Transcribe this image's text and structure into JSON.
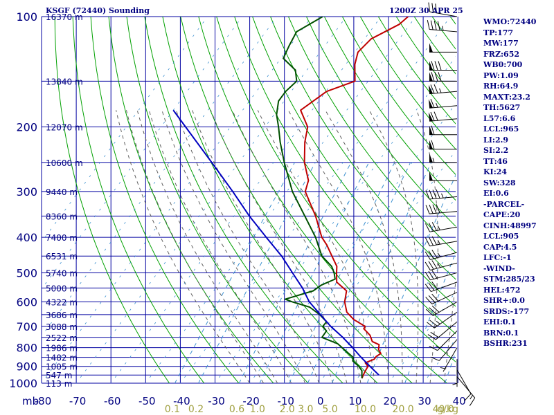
{
  "header": {
    "station": "KSGF (72440) Sounding",
    "time": "1200Z 30 APR 25"
  },
  "indices": [
    "WMO:72440",
    "TP:177",
    "MW:177",
    "FRZ:652",
    "WB0:700",
    "PW:1.09",
    "RH:64.9",
    "MAXT:23.2",
    "TH:5627",
    "L57:6.6",
    "LCL:965",
    "LI:2.9",
    "SI:2.2",
    "TT:46",
    "KI:24",
    "SW:328",
    "EI:0.6",
    "-PARCEL-",
    "CAPE:20",
    "CINH:48997",
    "LCL:905",
    "CAP:4.5",
    "LFC:-1",
    "-WIND-",
    "STM:285/23",
    "HEL:472",
    "SHR+:0.0",
    "SRDS:-177",
    "EHI:0.1",
    "BRN:0.1",
    "BSHR:231"
  ],
  "colors": {
    "grid": "#0000a0",
    "text": "#000080",
    "dry_adiabat": "#00a000",
    "moist_adiabat": "#606060",
    "mixing_ratio": "#3a8fd0",
    "temperature": "#c00000",
    "dewpoint": "#005000",
    "parcel": "#0000c0",
    "wind": "#000000"
  },
  "chart_data": {
    "type": "skew-t",
    "title": "KSGF (72440) Sounding",
    "ylabel": "mb",
    "pressure_ticks": [
      100,
      200,
      300,
      400,
      500,
      600,
      700,
      800,
      900,
      1000
    ],
    "pressure_range": [
      1000,
      100
    ],
    "temperature_ticks": [
      -80,
      -70,
      -60,
      -50,
      -40,
      -30,
      -20,
      -10,
      0,
      10,
      20,
      30,
      40
    ],
    "height_labels": [
      {
        "p": 100,
        "label": "16370 m"
      },
      {
        "p": 150,
        "label": "13840 m"
      },
      {
        "p": 200,
        "label": "12070 m"
      },
      {
        "p": 250,
        "label": "10600 m"
      },
      {
        "p": 300,
        "label": "9440 m"
      },
      {
        "p": 350,
        "label": "8360 m"
      },
      {
        "p": 400,
        "label": "7400 m"
      },
      {
        "p": 450,
        "label": "6531 m"
      },
      {
        "p": 500,
        "label": "5740 m"
      },
      {
        "p": 550,
        "label": "5000 m"
      },
      {
        "p": 600,
        "label": "4322 m"
      },
      {
        "p": 650,
        "label": "3686 m"
      },
      {
        "p": 700,
        "label": "3088 m"
      },
      {
        "p": 750,
        "label": "2522 m"
      },
      {
        "p": 800,
        "label": "1986 m"
      },
      {
        "p": 850,
        "label": "1482 m"
      },
      {
        "p": 900,
        "label": "1005 m"
      },
      {
        "p": 950,
        "label": "547 m"
      },
      {
        "p": 1000,
        "label": "113 m"
      }
    ],
    "mixing_ratio_labels": [
      {
        "w": 0.1,
        "label": "0.1"
      },
      {
        "w": 0.2,
        "label": "0.2"
      },
      {
        "w": 0.6,
        "label": "0.6"
      },
      {
        "w": 1.0,
        "label": "1.0"
      },
      {
        "w": 2.0,
        "label": "2.0"
      },
      {
        "w": 3.0,
        "label": "3.0"
      },
      {
        "w": 5.0,
        "label": "5.0"
      },
      {
        "w": 10.0,
        "label": "10.0"
      },
      {
        "w": 20.0,
        "label": "20.0"
      },
      {
        "w": 40.0,
        "label": "40.0"
      }
    ],
    "mixing_ratio_unit": "g/kg",
    "series": [
      {
        "role": "temperature",
        "points": [
          [
            970,
            11.3
          ],
          [
            950,
            11.0
          ],
          [
            925,
            10.7
          ],
          [
            900,
            10.5
          ],
          [
            880,
            9.0
          ],
          [
            860,
            10.8
          ],
          [
            845,
            10.8
          ],
          [
            830,
            11.5
          ],
          [
            810,
            10.0
          ],
          [
            785,
            9.1
          ],
          [
            770,
            6.5
          ],
          [
            740,
            4.5
          ],
          [
            710,
            1.3
          ],
          [
            700,
            1.2
          ],
          [
            670,
            -3.6
          ],
          [
            640,
            -7.1
          ],
          [
            600,
            -9.9
          ],
          [
            560,
            -11.7
          ],
          [
            530,
            -16.4
          ],
          [
            500,
            -18.4
          ],
          [
            480,
            -19.7
          ],
          [
            450,
            -23.3
          ],
          [
            420,
            -27.1
          ],
          [
            400,
            -30.2
          ],
          [
            350,
            -36.5
          ],
          [
            300,
            -44.7
          ],
          [
            280,
            -46.1
          ],
          [
            250,
            -51.1
          ],
          [
            220,
            -55.3
          ],
          [
            200,
            -57.7
          ],
          [
            180,
            -63.3
          ],
          [
            160,
            -59.8
          ],
          [
            150,
            -53.8
          ],
          [
            135,
            -57.4
          ],
          [
            125,
            -59.1
          ],
          [
            115,
            -58.1
          ],
          [
            105,
            -53.1
          ],
          [
            100,
            -52.2
          ]
        ]
      },
      {
        "role": "dewpoint",
        "points": [
          [
            970,
            11.3
          ],
          [
            950,
            10.6
          ],
          [
            925,
            9.7
          ],
          [
            900,
            7.9
          ],
          [
            870,
            5.0
          ],
          [
            850,
            4.3
          ],
          [
            820,
            1.2
          ],
          [
            780,
            -3.1
          ],
          [
            750,
            -8.9
          ],
          [
            720,
            -9.0
          ],
          [
            700,
            -11.0
          ],
          [
            680,
            -10.9
          ],
          [
            650,
            -14.4
          ],
          [
            620,
            -18.9
          ],
          [
            600,
            -25.0
          ],
          [
            590,
            -27.6
          ],
          [
            560,
            -21.3
          ],
          [
            540,
            -20.2
          ],
          [
            520,
            -17.5
          ],
          [
            500,
            -19.1
          ],
          [
            480,
            -21.2
          ],
          [
            450,
            -26.2
          ],
          [
            420,
            -29.6
          ],
          [
            400,
            -32.0
          ],
          [
            350,
            -39.6
          ],
          [
            300,
            -48.4
          ],
          [
            250,
            -56.9
          ],
          [
            220,
            -62.4
          ],
          [
            200,
            -66.1
          ],
          [
            185,
            -69.3
          ],
          [
            170,
            -71.6
          ],
          [
            160,
            -71.6
          ],
          [
            150,
            -70.6
          ],
          [
            140,
            -73.3
          ],
          [
            130,
            -79.3
          ],
          [
            120,
            -80.3
          ],
          [
            110,
            -81.1
          ],
          [
            100,
            -76.8
          ]
        ]
      },
      {
        "role": "parcel",
        "points": [
          [
            950,
            15.5
          ],
          [
            900,
            11.1
          ],
          [
            850,
            6.6
          ],
          [
            800,
            2.1
          ],
          [
            750,
            -2.9
          ],
          [
            700,
            -8.7
          ],
          [
            650,
            -14.2
          ],
          [
            600,
            -20.1
          ],
          [
            550,
            -25.0
          ],
          [
            500,
            -31.1
          ],
          [
            450,
            -37.8
          ],
          [
            400,
            -46.2
          ],
          [
            350,
            -55.6
          ],
          [
            300,
            -65.6
          ],
          [
            250,
            -77.8
          ],
          [
            200,
            -92.9
          ],
          [
            180,
            -100.0
          ]
        ]
      }
    ],
    "wind_barbs": [
      {
        "p": 100,
        "dir": 280,
        "kt": 35
      },
      {
        "p": 110,
        "dir": 275,
        "kt": 45
      },
      {
        "p": 125,
        "dir": 270,
        "kt": 50
      },
      {
        "p": 140,
        "dir": 270,
        "kt": 80
      },
      {
        "p": 150,
        "dir": 270,
        "kt": 80
      },
      {
        "p": 160,
        "dir": 265,
        "kt": 75
      },
      {
        "p": 175,
        "dir": 265,
        "kt": 65
      },
      {
        "p": 190,
        "dir": 265,
        "kt": 70
      },
      {
        "p": 210,
        "dir": 270,
        "kt": 60
      },
      {
        "p": 230,
        "dir": 270,
        "kt": 60
      },
      {
        "p": 250,
        "dir": 270,
        "kt": 55
      },
      {
        "p": 280,
        "dir": 270,
        "kt": 50
      },
      {
        "p": 310,
        "dir": 265,
        "kt": 45
      },
      {
        "p": 340,
        "dir": 265,
        "kt": 40
      },
      {
        "p": 375,
        "dir": 260,
        "kt": 35
      },
      {
        "p": 410,
        "dir": 260,
        "kt": 35
      },
      {
        "p": 440,
        "dir": 255,
        "kt": 35
      },
      {
        "p": 470,
        "dir": 255,
        "kt": 35
      },
      {
        "p": 500,
        "dir": 255,
        "kt": 30
      },
      {
        "p": 530,
        "dir": 250,
        "kt": 30
      },
      {
        "p": 565,
        "dir": 245,
        "kt": 30
      },
      {
        "p": 600,
        "dir": 240,
        "kt": 30
      },
      {
        "p": 640,
        "dir": 235,
        "kt": 25
      },
      {
        "p": 680,
        "dir": 230,
        "kt": 20
      },
      {
        "p": 720,
        "dir": 225,
        "kt": 15
      },
      {
        "p": 760,
        "dir": 220,
        "kt": 10
      },
      {
        "p": 800,
        "dir": 210,
        "kt": 5
      },
      {
        "p": 860,
        "dir": 180,
        "kt": 5
      },
      {
        "p": 920,
        "dir": 150,
        "kt": 10
      },
      {
        "p": 960,
        "dir": 140,
        "kt": 15
      }
    ]
  }
}
